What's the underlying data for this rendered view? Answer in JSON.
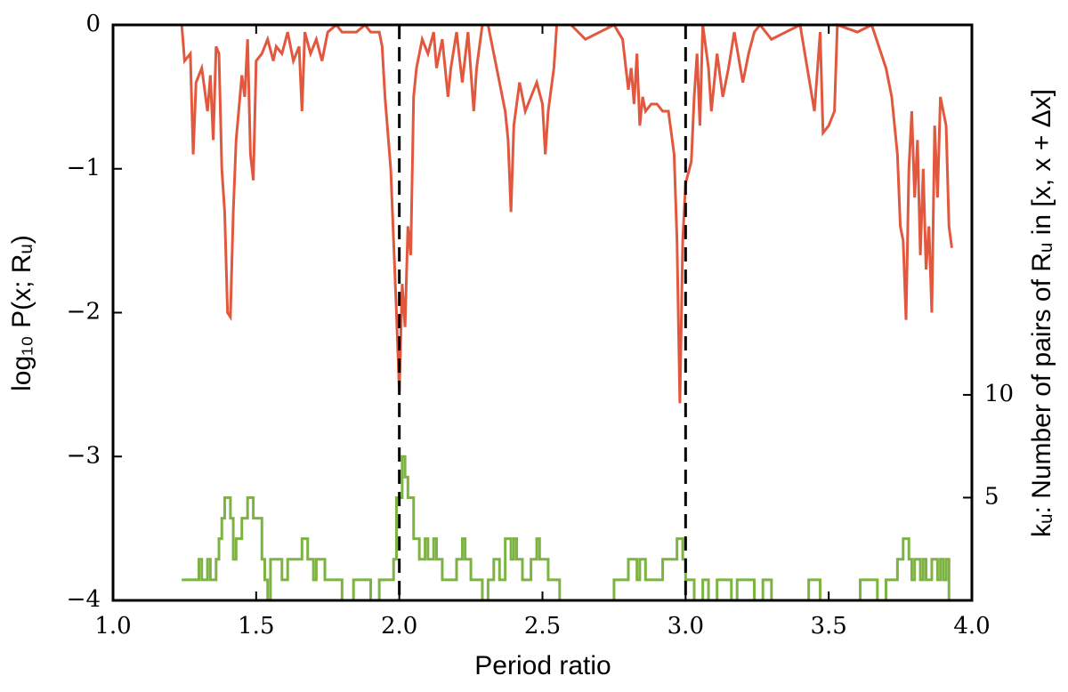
{
  "chart_data": {
    "type": "line",
    "xlabel": "Period ratio",
    "ylabel": "log₁₀ P(x; Rᵤ)",
    "y2label": "kᵤ: Number of pairs of Rᵤ in [x, x + Δx]",
    "xlim": [
      1.0,
      4.0
    ],
    "xticks": [
      {
        "value": 1.0,
        "label": "1.0"
      },
      {
        "value": 1.5,
        "label": "1.5"
      },
      {
        "value": 2.0,
        "label": "2.0"
      },
      {
        "value": 2.5,
        "label": "2.5"
      },
      {
        "value": 3.0,
        "label": "3.0"
      },
      {
        "value": 3.5,
        "label": "3.5"
      },
      {
        "value": 4.0,
        "label": "4.0"
      }
    ],
    "ylim": [
      -4,
      0
    ],
    "yticks": [
      {
        "value": -4,
        "label": "−4"
      },
      {
        "value": -3,
        "label": "−3"
      },
      {
        "value": -2,
        "label": "−2"
      },
      {
        "value": -1,
        "label": "−1"
      },
      0
    ],
    "y2lim": [
      0,
      28
    ],
    "y2ticks": [
      5,
      10
    ],
    "vlines": [
      2.0,
      3.0
    ],
    "series": [
      {
        "name": "log10 P",
        "color": "#e2583e",
        "step": false,
        "x": [
          1.24,
          1.25,
          1.27,
          1.28,
          1.29,
          1.31,
          1.33,
          1.34,
          1.35,
          1.36,
          1.37,
          1.38,
          1.39,
          1.4,
          1.41,
          1.42,
          1.43,
          1.45,
          1.46,
          1.47,
          1.48,
          1.49,
          1.5,
          1.52,
          1.54,
          1.56,
          1.57,
          1.59,
          1.61,
          1.63,
          1.65,
          1.66,
          1.67,
          1.69,
          1.71,
          1.73,
          1.75,
          1.78,
          1.8,
          1.85,
          1.88,
          1.9,
          1.93,
          1.94,
          1.95,
          1.97,
          1.99,
          2.0,
          2.01,
          2.02,
          2.03,
          2.04,
          2.05,
          2.06,
          2.08,
          2.1,
          2.12,
          2.13,
          2.15,
          2.17,
          2.18,
          2.2,
          2.22,
          2.24,
          2.26,
          2.27,
          2.29,
          2.31,
          2.35,
          2.37,
          2.38,
          2.39,
          2.4,
          2.42,
          2.44,
          2.46,
          2.48,
          2.5,
          2.51,
          2.52,
          2.54,
          2.55,
          2.6,
          2.65,
          2.7,
          2.75,
          2.78,
          2.8,
          2.81,
          2.82,
          2.83,
          2.84,
          2.85,
          2.86,
          2.88,
          2.9,
          2.92,
          2.94,
          2.96,
          2.97,
          2.98,
          2.99,
          3.0,
          3.02,
          3.03,
          3.04,
          3.05,
          3.06,
          3.08,
          3.09,
          3.11,
          3.13,
          3.15,
          3.17,
          3.2,
          3.22,
          3.24,
          3.26,
          3.3,
          3.35,
          3.4,
          3.45,
          3.47,
          3.48,
          3.5,
          3.52,
          3.53,
          3.6,
          3.65,
          3.7,
          3.72,
          3.74,
          3.75,
          3.76,
          3.77,
          3.78,
          3.79,
          3.8,
          3.81,
          3.82,
          3.83,
          3.84,
          3.85,
          3.86,
          3.87,
          3.88,
          3.89,
          3.9,
          3.91,
          3.92,
          3.93
        ],
        "values": [
          0,
          -0.25,
          -0.2,
          -0.9,
          -0.4,
          -0.3,
          -0.6,
          -0.35,
          -0.8,
          -0.15,
          -0.2,
          -1.0,
          -1.3,
          -2.0,
          -2.03,
          -1.3,
          -0.8,
          -0.35,
          -0.5,
          -0.1,
          -0.9,
          -1.08,
          -0.25,
          -0.2,
          -0.1,
          -0.25,
          -0.15,
          -0.2,
          -0.05,
          -0.25,
          -0.15,
          -0.6,
          -0.05,
          -0.2,
          -0.1,
          -0.25,
          -0.05,
          0,
          -0.05,
          -0.05,
          0,
          -0.05,
          -0.05,
          -0.15,
          -0.5,
          -1.0,
          -2.0,
          -2.55,
          -1.8,
          -2.1,
          -1.4,
          -1.6,
          -0.5,
          -0.3,
          -0.1,
          -0.2,
          -0.05,
          -0.3,
          -0.1,
          -0.5,
          -0.3,
          -0.05,
          -0.4,
          -0.05,
          -0.6,
          -0.3,
          0,
          0,
          -0.4,
          -0.6,
          -0.8,
          -1.3,
          -0.7,
          -0.4,
          -0.6,
          -0.5,
          -0.4,
          -0.55,
          -0.9,
          -0.6,
          -0.3,
          0,
          0,
          -0.1,
          -0.05,
          0,
          -0.1,
          -0.45,
          -0.3,
          -0.55,
          -0.2,
          -0.7,
          -0.5,
          -0.6,
          -0.55,
          -0.55,
          -0.6,
          -0.6,
          -0.9,
          -1.5,
          -2.63,
          -1.5,
          -1.1,
          -0.95,
          -0.5,
          -0.2,
          -0.7,
          0,
          -0.3,
          -0.6,
          -0.2,
          -0.5,
          -0.3,
          -0.05,
          -0.4,
          -0.2,
          -0.05,
          0,
          -0.1,
          -0.05,
          0,
          -0.6,
          -0.05,
          -0.75,
          -0.7,
          -0.6,
          0,
          -0.05,
          0,
          -0.3,
          -0.5,
          -0.9,
          -1.4,
          -1.5,
          -2.05,
          -1.0,
          -0.6,
          -1.2,
          -0.8,
          -1.6,
          -1.0,
          -1.7,
          -1.4,
          -2.0,
          -0.7,
          -1.2,
          -0.5,
          -0.6,
          -0.7,
          -1.4,
          -1.55
        ]
      },
      {
        "name": "k_u",
        "color": "#7cb342",
        "axis": "y2",
        "step": true,
        "x": [
          1.24,
          1.3,
          1.31,
          1.33,
          1.34,
          1.36,
          1.37,
          1.38,
          1.39,
          1.41,
          1.42,
          1.43,
          1.45,
          1.47,
          1.49,
          1.52,
          1.53,
          1.54,
          1.55,
          1.59,
          1.61,
          1.66,
          1.68,
          1.7,
          1.71,
          1.74,
          1.8,
          1.84,
          1.9,
          1.93,
          1.98,
          1.99,
          2.01,
          2.02,
          2.03,
          2.05,
          2.07,
          2.09,
          2.1,
          2.12,
          2.13,
          2.15,
          2.2,
          2.22,
          2.23,
          2.25,
          2.29,
          2.31,
          2.33,
          2.35,
          2.37,
          2.39,
          2.4,
          2.41,
          2.43,
          2.46,
          2.48,
          2.49,
          2.52,
          2.56,
          2.75,
          2.8,
          2.83,
          2.84,
          2.86,
          2.92,
          2.97,
          2.99,
          3.0,
          3.03,
          3.06,
          3.08,
          3.11,
          3.16,
          3.18,
          3.24,
          3.27,
          3.3,
          3.43,
          3.47,
          3.61,
          3.67,
          3.7,
          3.74,
          3.76,
          3.78,
          3.79,
          3.8,
          3.82,
          3.83,
          3.84,
          3.86,
          3.88,
          3.89,
          3.9,
          3.91,
          3.92
        ],
        "values": [
          1,
          2,
          1,
          2,
          1,
          2,
          3,
          4,
          5,
          4,
          2,
          3,
          4,
          5,
          4,
          2,
          1,
          0,
          2,
          1,
          2,
          3,
          2,
          1,
          2,
          1,
          0,
          1,
          0,
          1,
          2,
          5,
          7,
          6,
          5,
          3,
          2,
          3,
          2,
          3,
          2,
          1,
          2,
          3,
          2,
          1,
          0,
          1,
          2,
          1,
          3,
          2,
          3,
          2,
          1,
          2,
          3,
          2,
          1,
          0,
          1,
          2,
          1,
          2,
          1,
          2,
          3,
          2,
          1,
          0,
          1,
          0,
          1,
          0,
          1,
          0,
          1,
          0,
          1,
          0,
          1,
          0,
          1,
          2,
          3,
          2,
          1,
          2,
          1,
          2,
          1,
          2,
          1,
          2,
          1,
          2,
          0
        ]
      }
    ]
  }
}
